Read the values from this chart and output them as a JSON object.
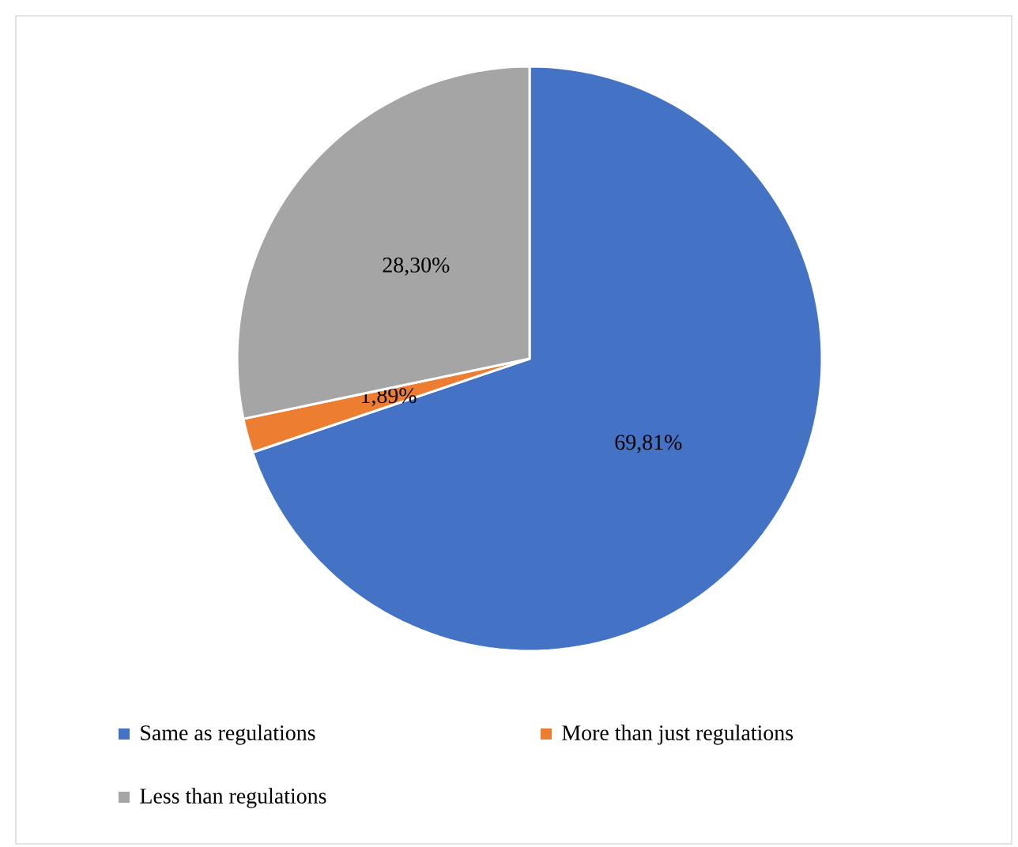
{
  "chart_data": {
    "type": "pie",
    "categories": [
      "Same as regulations",
      "More than just regulations",
      "Less than regulations"
    ],
    "values": [
      69.81,
      1.89,
      28.3
    ],
    "colors": [
      "#4472c4",
      "#ed7d31",
      "#a5a5a5"
    ],
    "value_labels": [
      "69,81%",
      "1,89%",
      "28,30%"
    ],
    "legend": "bottom"
  }
}
